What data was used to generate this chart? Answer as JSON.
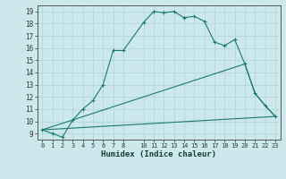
{
  "xlabel": "Humidex (Indice chaleur)",
  "bg_color": "#cce8ec",
  "line_color": "#1a7a6e",
  "grid_color": "#aad4d8",
  "xlim": [
    -0.5,
    23.5
  ],
  "ylim": [
    8.5,
    19.5
  ],
  "xticks": [
    0,
    1,
    2,
    3,
    4,
    5,
    6,
    7,
    8,
    10,
    11,
    12,
    13,
    14,
    15,
    16,
    17,
    18,
    19,
    20,
    21,
    22,
    23
  ],
  "yticks": [
    9,
    10,
    11,
    12,
    13,
    14,
    15,
    16,
    17,
    18,
    19
  ],
  "series1_x": [
    0,
    1,
    2,
    3,
    4,
    5,
    6,
    7,
    8,
    10,
    11,
    12,
    13,
    14,
    15,
    16,
    17,
    18,
    19,
    20,
    21,
    22,
    23
  ],
  "series1_y": [
    9.3,
    9.0,
    8.7,
    10.1,
    11.0,
    11.7,
    13.0,
    15.8,
    15.8,
    18.1,
    19.0,
    18.9,
    19.0,
    18.5,
    18.6,
    18.2,
    16.5,
    16.2,
    16.7,
    14.7,
    12.3,
    11.3,
    10.4
  ],
  "series2_x": [
    0,
    23
  ],
  "series2_y": [
    9.3,
    10.4
  ],
  "series3_x": [
    0,
    20,
    21,
    22,
    23
  ],
  "series3_y": [
    9.3,
    14.7,
    12.3,
    11.3,
    10.4
  ]
}
